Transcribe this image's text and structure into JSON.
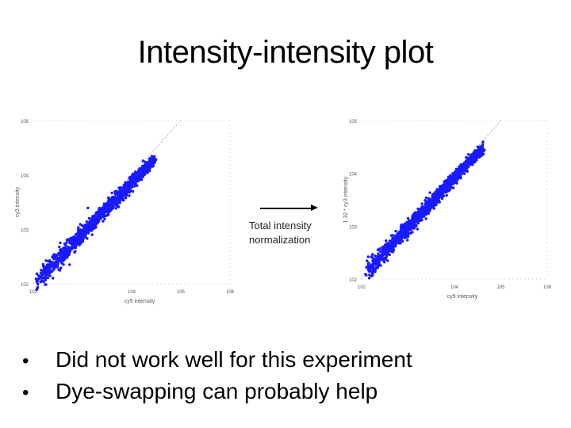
{
  "slide": {
    "title": "Intensity-intensity plot",
    "arrow_label_line1": "Total intensity",
    "arrow_label_line2": "normalization",
    "bullets": [
      "Did not work well for this experiment",
      "Dye-swapping can probably help"
    ]
  },
  "colors": {
    "points": "#1a1aff",
    "diagonal": "#b0b0b0",
    "axis_text": "#555555"
  },
  "chart_data": [
    {
      "type": "scatter",
      "title": "",
      "xlabel": "cy5 intensity",
      "ylabel": "cy3 intensity",
      "xscale": "log",
      "yscale": "log",
      "xlim": [
        100,
        1000000
      ],
      "ylim": [
        100,
        100000
      ],
      "x_ticks": [
        "10^2",
        "10^4",
        "10^5",
        "10^6"
      ],
      "y_ticks": [
        "10^2",
        "10^3",
        "10^4",
        "10^5"
      ],
      "grid": false,
      "diagonal": true,
      "cloud": {
        "from": [
          120,
          110
        ],
        "to": [
          30000,
          20000
        ],
        "spread_dex": 0.06
      },
      "outliers": [
        [
          150,
          160
        ],
        [
          170,
          130
        ],
        [
          200,
          180
        ],
        [
          160,
          210
        ],
        [
          220,
          140
        ],
        [
          260,
          330
        ],
        [
          350,
          420
        ]
      ]
    },
    {
      "type": "scatter",
      "title": "",
      "xlabel": "cy5 intensity",
      "ylabel": "1.32 * cy3 intensity",
      "xscale": "log",
      "yscale": "log",
      "xlim": [
        100,
        1000000
      ],
      "ylim": [
        100,
        100000
      ],
      "x_ticks": [
        "10^2",
        "10^4",
        "10^5",
        "10^6"
      ],
      "y_ticks": [
        "10^2",
        "10^3",
        "10^4",
        "10^5"
      ],
      "grid": false,
      "diagonal": true,
      "cloud": {
        "from": [
          130,
          140
        ],
        "to": [
          40000,
          30000
        ],
        "spread_dex": 0.06
      },
      "outliers": [
        [
          170,
          160
        ],
        [
          200,
          150
        ],
        [
          240,
          200
        ],
        [
          180,
          230
        ],
        [
          260,
          180
        ],
        [
          300,
          360
        ]
      ]
    }
  ]
}
